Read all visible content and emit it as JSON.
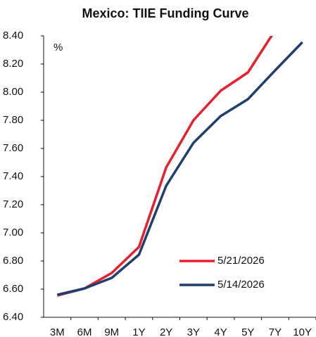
{
  "chart_data": {
    "type": "line",
    "title": "Mexico: TIIE Funding Curve",
    "y_label": "%",
    "categories": [
      "3M",
      "6M",
      "9M",
      "1Y",
      "2Y",
      "3Y",
      "4Y",
      "5Y",
      "7Y",
      "10Y"
    ],
    "series": [
      {
        "name": "5/21/2026",
        "color": "#e8202e",
        "values": [
          6.555,
          6.605,
          6.715,
          6.9,
          7.465,
          7.8,
          8.01,
          8.14,
          8.44,
          null
        ]
      },
      {
        "name": "5/14/2026",
        "color": "#1f3f6e",
        "values": [
          6.56,
          6.605,
          6.68,
          6.845,
          7.335,
          7.64,
          7.83,
          7.95,
          8.155,
          8.355
        ]
      }
    ],
    "ylim": [
      6.4,
      8.4
    ],
    "yticks": [
      {
        "value": 6.4,
        "label": "6.40"
      },
      {
        "value": 6.6,
        "label": "6.60"
      },
      {
        "value": 6.8,
        "label": "6.80"
      },
      {
        "value": 7.0,
        "label": "7.00"
      },
      {
        "value": 7.2,
        "label": "7.20"
      },
      {
        "value": 7.4,
        "label": "7.40"
      },
      {
        "value": 7.6,
        "label": "7.60"
      },
      {
        "value": 7.8,
        "label": "7.80"
      },
      {
        "value": 8.0,
        "label": "8.00"
      },
      {
        "value": 8.2,
        "label": "8.20"
      },
      {
        "value": 8.4,
        "label": "8.40"
      }
    ],
    "grid": false
  }
}
